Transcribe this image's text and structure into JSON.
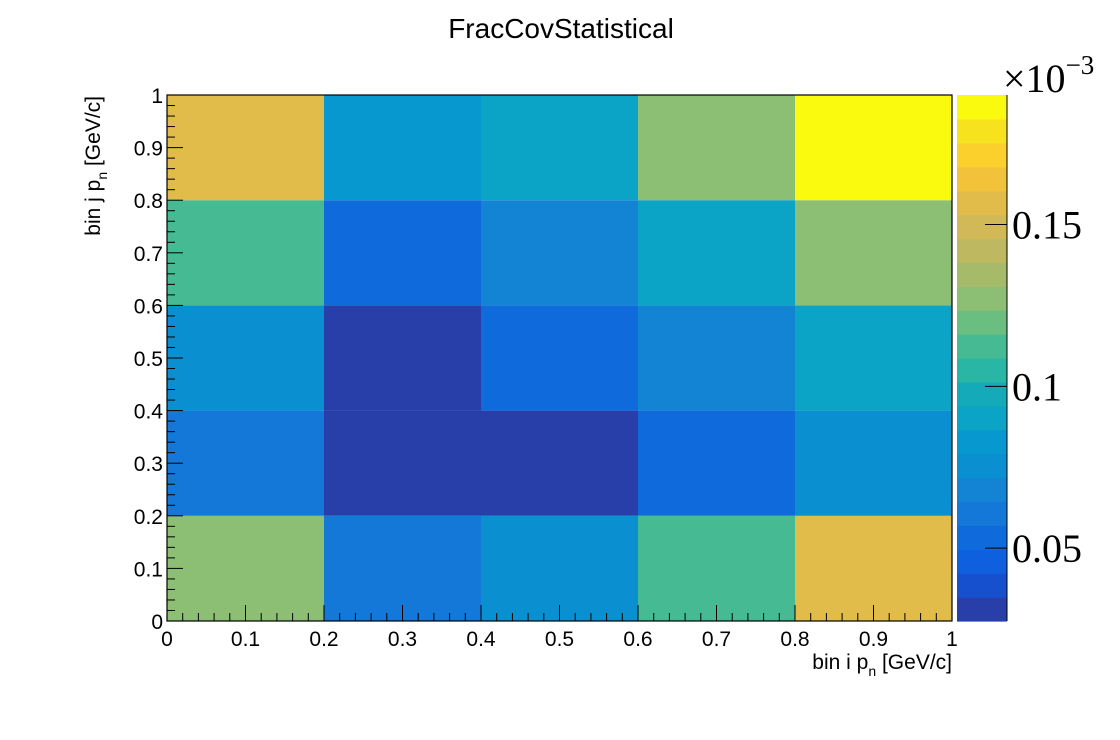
{
  "chart_data": {
    "type": "heatmap",
    "title": "FracCovStatistical",
    "xlabel": {
      "main": "bin i p",
      "sub": "n",
      "unit": " [GeV/c]"
    },
    "ylabel": {
      "main": "bin j p",
      "sub": "n",
      "unit": " [GeV/c]"
    },
    "x_edges": [
      0,
      0.2,
      0.4,
      0.6,
      0.8,
      1
    ],
    "y_edges": [
      0,
      0.2,
      0.4,
      0.6,
      0.8,
      1
    ],
    "xlim": [
      0,
      1
    ],
    "ylim": [
      0,
      1
    ],
    "x_ticks": [
      0,
      0.1,
      0.2,
      0.3,
      0.4,
      0.5,
      0.6,
      0.7,
      0.8,
      0.9,
      1
    ],
    "x_tick_labels": [
      "0",
      "0.1",
      "0.2",
      "0.3",
      "0.4",
      "0.5",
      "0.6",
      "0.7",
      "0.8",
      "0.9",
      "1"
    ],
    "y_ticks": [
      0,
      0.1,
      0.2,
      0.3,
      0.4,
      0.5,
      0.6,
      0.7,
      0.8,
      0.9,
      1
    ],
    "y_tick_labels": [
      "0",
      "0.1",
      "0.2",
      "0.3",
      "0.4",
      "0.5",
      "0.6",
      "0.7",
      "0.8",
      "0.9",
      "1"
    ],
    "z_values_rows_bottom_to_top": [
      [
        0.13,
        0.063,
        0.075,
        0.112,
        0.16
      ],
      [
        0.063,
        0.03,
        0.03,
        0.055,
        0.075
      ],
      [
        0.078,
        0.03,
        0.05,
        0.065,
        0.09
      ],
      [
        0.11,
        0.057,
        0.065,
        0.09,
        0.13
      ],
      [
        0.16,
        0.08,
        0.09,
        0.13,
        0.19
      ]
    ],
    "zlim": [
      0.0275,
      0.19
    ],
    "z_ticks": [
      0.05,
      0.1,
      0.15
    ],
    "z_tick_labels": [
      "0.05",
      "0.1",
      "0.15"
    ],
    "z_multiplier": {
      "base": "×10",
      "exponent": "−3"
    },
    "palette": [
      "#283ea8",
      "#1750cf",
      "#0e60df",
      "#0f6bdb",
      "#1478d8",
      "#1383d3",
      "#0a8fd0",
      "#0898d0",
      "#0ba3c6",
      "#15aab9",
      "#2ab6a5",
      "#46ba92",
      "#6abf80",
      "#8cbe73",
      "#a6bb69",
      "#beb860",
      "#d0b956",
      "#e2bc4a",
      "#f2c33a",
      "#fbcf2c",
      "#f6e31d",
      "#f9fa0e"
    ],
    "grid": false,
    "legend": "colorbar-right"
  }
}
